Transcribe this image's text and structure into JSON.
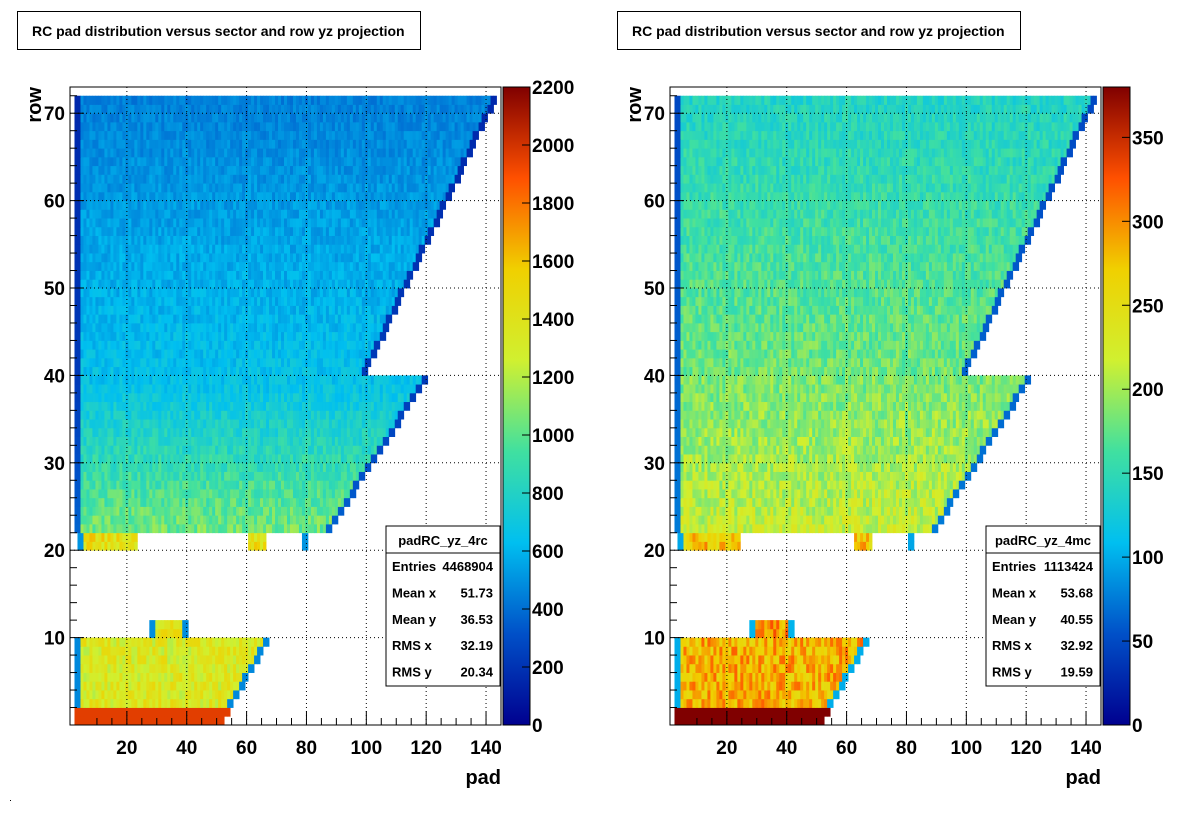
{
  "chart_data": [
    {
      "type": "heatmap",
      "title": "RC pad distribution versus sector and row yz projection",
      "xlabel": "pad",
      "ylabel": "row",
      "xlim": [
        1,
        145
      ],
      "ylim": [
        0,
        73
      ],
      "zlim": [
        0,
        2200
      ],
      "grid": true,
      "x_ticks": [
        20,
        40,
        60,
        80,
        100,
        120,
        140
      ],
      "y_ticks": [
        10,
        20,
        30,
        40,
        50,
        60,
        70
      ],
      "z_ticks": [
        0,
        200,
        400,
        600,
        800,
        1000,
        1200,
        1400,
        1600,
        1800,
        2000,
        2200
      ],
      "colorscale": [
        "#00008f",
        "#0050c8",
        "#00bff0",
        "#40e0a0",
        "#d0f030",
        "#f0d000",
        "#ff5000",
        "#800000"
      ],
      "regions": [
        {
          "rows": [
            1,
            10
          ],
          "x_start": 3,
          "x_end_at_row1": 52,
          "x_end_at_row10": 67,
          "level": 1350
        },
        {
          "rows": [
            11,
            12
          ],
          "x_start": 28,
          "x_end": 40,
          "level": 1400
        },
        {
          "rows": [
            21,
            22
          ],
          "x_start": 4,
          "x_end": 80,
          "gaps": [
            [
              24,
              60
            ],
            [
              67,
              78
            ]
          ],
          "level": 1450
        },
        {
          "rows": [
            23,
            40
          ],
          "x_start": 3,
          "x_end_at_row23": 88,
          "x_end_at_row40": 120,
          "level_low": 1050,
          "level_high": 650
        },
        {
          "rows": [
            41,
            72
          ],
          "x_start": 3,
          "x_end_at_row41": 100,
          "x_end_at_row72": 143,
          "level_low": 650,
          "level_high": 450
        }
      ],
      "stats": {
        "name": "padRC_yz_4rc",
        "rows": [
          {
            "label": "Entries",
            "value": "4468904"
          },
          {
            "label": "Mean x",
            "value": "51.73"
          },
          {
            "label": "Mean y",
            "value": "36.53"
          },
          {
            "label": "RMS x",
            "value": "32.19"
          },
          {
            "label": "RMS y",
            "value": "20.34"
          }
        ]
      }
    },
    {
      "type": "heatmap",
      "title": "RC pad distribution versus sector and row yz projection",
      "xlabel": "pad",
      "ylabel": "row",
      "xlim": [
        1,
        145
      ],
      "ylim": [
        0,
        73
      ],
      "zlim": [
        0,
        380
      ],
      "grid": true,
      "x_ticks": [
        20,
        40,
        60,
        80,
        100,
        120,
        140
      ],
      "y_ticks": [
        10,
        20,
        30,
        40,
        50,
        60,
        70
      ],
      "z_ticks": [
        0,
        50,
        100,
        150,
        200,
        250,
        300,
        350
      ],
      "colorscale": [
        "#00008f",
        "#0050c8",
        "#00bff0",
        "#40e0a0",
        "#d0f030",
        "#f0d000",
        "#ff5000",
        "#800000"
      ],
      "regions": [
        {
          "rows": [
            1,
            10
          ],
          "x_start": 3,
          "x_end_at_row1": 52,
          "x_end_at_row10": 67,
          "level": 285
        },
        {
          "rows": [
            11,
            12
          ],
          "x_start": 28,
          "x_end": 42,
          "level": 295
        },
        {
          "rows": [
            21,
            22
          ],
          "x_start": 4,
          "x_end": 82,
          "gaps": [
            [
              25,
              62
            ],
            [
              69,
              80
            ]
          ],
          "level": 275
        },
        {
          "rows": [
            23,
            40
          ],
          "x_start": 3,
          "x_end_at_row23": 90,
          "x_end_at_row40": 121,
          "level_low": 215,
          "level_high": 185
        },
        {
          "rows": [
            41,
            72
          ],
          "x_start": 3,
          "x_end_at_row41": 100,
          "x_end_at_row72": 143,
          "level_low": 180,
          "level_high": 140
        }
      ],
      "stats": {
        "name": "padRC_yz_4mc",
        "rows": [
          {
            "label": "Entries",
            "value": "1113424"
          },
          {
            "label": "Mean x",
            "value": "53.68"
          },
          {
            "label": "Mean y",
            "value": "40.55"
          },
          {
            "label": "RMS x",
            "value": "32.92"
          },
          {
            "label": "RMS y",
            "value": "19.59"
          }
        ]
      }
    }
  ]
}
